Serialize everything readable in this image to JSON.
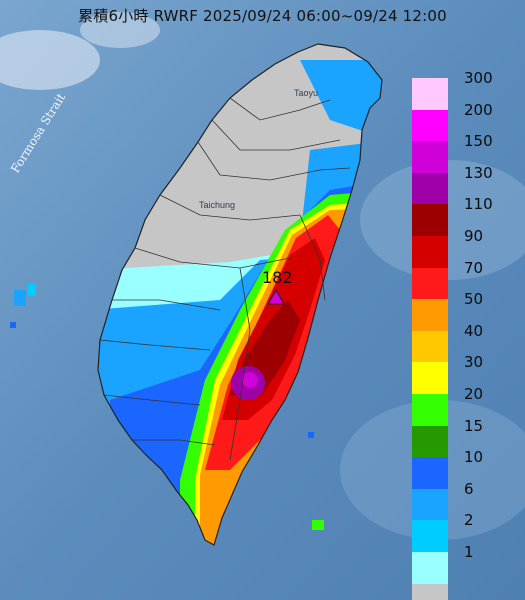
{
  "title": "累積6小時 RWRF 2025/09/24 06:00~09/24 12:00",
  "strait_label": "Formosa Strait",
  "places": {
    "taoyuan": "Taoyu",
    "taichung": "Taichung"
  },
  "peak_value": "182",
  "legend": [
    {
      "label": "300",
      "color": "#ffc8ff"
    },
    {
      "label": "200",
      "color": "#ff00ff"
    },
    {
      "label": "150",
      "color": "#d000d8"
    },
    {
      "label": "130",
      "color": "#a000a8"
    },
    {
      "label": "110",
      "color": "#9c0000"
    },
    {
      "label": "90",
      "color": "#d40000"
    },
    {
      "label": "70",
      "color": "#ff1a1a"
    },
    {
      "label": "50",
      "color": "#ff9a00"
    },
    {
      "label": "40",
      "color": "#ffc800"
    },
    {
      "label": "30",
      "color": "#ffff00"
    },
    {
      "label": "20",
      "color": "#33ff00"
    },
    {
      "label": "15",
      "color": "#269900"
    },
    {
      "label": "10",
      "color": "#1a66ff"
    },
    {
      "label": "6",
      "color": "#1aa3ff"
    },
    {
      "label": "2",
      "color": "#00ccff"
    },
    {
      "label": "1",
      "color": "#99ffff"
    },
    {
      "label": "",
      "color": "#c6c6c6"
    }
  ]
}
